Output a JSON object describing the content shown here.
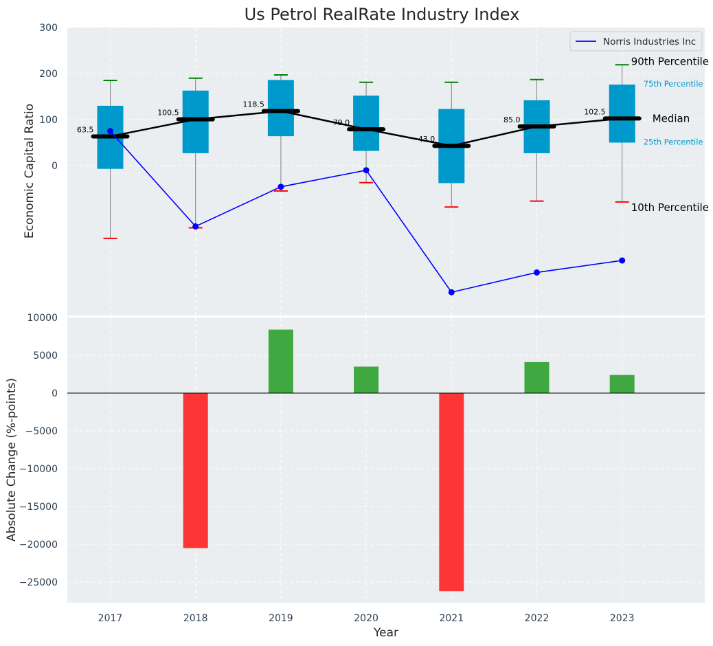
{
  "chart_data": {
    "title": "Us Petrol RealRate Industry Index",
    "xlabel": "Year",
    "top_panel": {
      "type": "box",
      "ylabel": "Economic Capital Ratio",
      "ylim": [
        -330,
        300
      ],
      "yticks": [
        0,
        100,
        200,
        300
      ],
      "categories": [
        "2017",
        "2018",
        "2019",
        "2020",
        "2021",
        "2022",
        "2023"
      ],
      "boxes": [
        {
          "p10": -158,
          "p25": -7,
          "median": 63.5,
          "p75": 130,
          "p90": 185,
          "median_label": "63.5"
        },
        {
          "p10": -135,
          "p25": 27,
          "median": 100.5,
          "p75": 163,
          "p90": 190,
          "median_label": "100.5"
        },
        {
          "p10": -55,
          "p25": 64,
          "median": 118.5,
          "p75": 186,
          "p90": 197,
          "median_label": "118.5"
        },
        {
          "p10": -37,
          "p25": 32,
          "median": 79.0,
          "p75": 152,
          "p90": 181,
          "median_label": "79.0"
        },
        {
          "p10": -90,
          "p25": -38,
          "median": 43.0,
          "p75": 123,
          "p90": 181,
          "median_label": "43.0"
        },
        {
          "p10": -77,
          "p25": 27,
          "median": 85.0,
          "p75": 142,
          "p90": 187,
          "median_label": "85.0"
        },
        {
          "p10": -79,
          "p25": 50,
          "median": 102.5,
          "p75": 176,
          "p90": 219,
          "median_label": "102.5"
        }
      ],
      "company_series": {
        "name": "Norris Industries Inc",
        "values": [
          75,
          -132,
          -46,
          -10,
          -275,
          -232,
          -206
        ]
      },
      "legend": "top-right",
      "annotations": {
        "p90": "90th Percentile",
        "p75": "75th Percentile",
        "median": "Median",
        "p25": "25th Percentile",
        "p10": "10th Percentile"
      }
    },
    "bottom_panel": {
      "type": "bar",
      "ylabel": "Absolute Change (%-points)",
      "ylim": [
        -28000,
        10000
      ],
      "yticks": [
        10000,
        5000,
        0,
        -5000,
        -10000,
        -15000,
        -20000,
        -25000
      ],
      "ytick_labels": [
        "10000",
        "5000",
        "0",
        "−5000",
        "−10000",
        "−15000",
        "−20000",
        "−25000"
      ],
      "categories": [
        "2018",
        "2019",
        "2020",
        "2021",
        "2022",
        "2023"
      ],
      "values": [
        -20500,
        8400,
        3500,
        -26200,
        4100,
        2400
      ]
    },
    "colors": {
      "box_fill": "#0099cc",
      "median_bar": "#000000",
      "company_line": "#0000ff",
      "p90_cap": "#008000",
      "p10_cap": "#ff0000",
      "positive_bar": "#2ca02c",
      "negative_bar": "#ff2020",
      "panel_bg": "#eaeef0"
    }
  }
}
